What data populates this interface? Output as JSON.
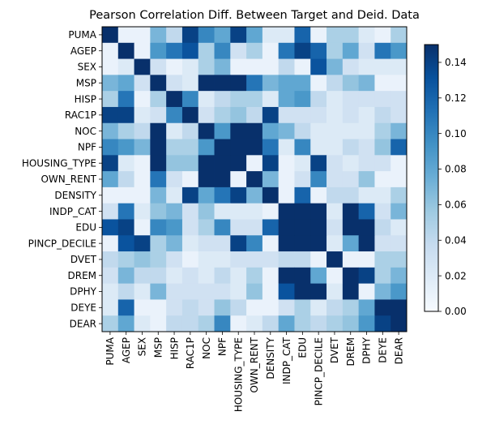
{
  "chart_data": {
    "type": "heatmap",
    "title": "Pearson Correlation Diff. Between Target and Deid. Data",
    "xlabel": "",
    "ylabel": "",
    "labels": [
      "PUMA",
      "AGEP",
      "SEX",
      "MSP",
      "HISP",
      "RAC1P",
      "NOC",
      "NPF",
      "HOUSING_TYPE",
      "OWN_RENT",
      "DENSITY",
      "INDP_CAT",
      "EDU",
      "PINCP_DECILE",
      "DVET",
      "DREM",
      "DPHY",
      "DEYE",
      "DEAR"
    ],
    "colorbar": {
      "min": 0.0,
      "max": 0.15,
      "ticks": [
        0.0,
        0.02,
        0.04,
        0.06,
        0.08,
        0.1,
        0.12,
        0.14
      ],
      "tick_labels": [
        "0.00",
        "0.02",
        "0.04",
        "0.06",
        "0.08",
        "0.10",
        "0.12",
        "0.14"
      ],
      "colors": [
        "#f7fbff",
        "#deebf7",
        "#c6dbef",
        "#9ecae1",
        "#6baed6",
        "#4292c6",
        "#2171b5",
        "#08519c",
        "#08306b"
      ]
    },
    "values": [
      [
        0.15,
        0.01,
        0.01,
        0.07,
        0.04,
        0.14,
        0.1,
        0.08,
        0.14,
        0.08,
        0.02,
        0.02,
        0.12,
        0.01,
        0.05,
        0.05,
        0.02,
        0.01,
        0.05
      ],
      [
        0.01,
        0.15,
        0.01,
        0.09,
        0.11,
        0.13,
        0.05,
        0.1,
        0.03,
        0.05,
        0.01,
        0.11,
        0.14,
        0.12,
        0.05,
        0.08,
        0.03,
        0.11,
        0.09
      ],
      [
        0.01,
        0.02,
        0.15,
        0.03,
        0.01,
        0.02,
        0.05,
        0.07,
        0.01,
        0.01,
        0.01,
        0.04,
        0.01,
        0.13,
        0.07,
        0.03,
        0.02,
        0.02,
        0.02
      ],
      [
        0.07,
        0.08,
        0.03,
        0.15,
        0.03,
        0.02,
        0.15,
        0.15,
        0.15,
        0.11,
        0.07,
        0.08,
        0.08,
        0.01,
        0.04,
        0.06,
        0.07,
        0.01,
        0.01
      ],
      [
        0.05,
        0.11,
        0.01,
        0.05,
        0.15,
        0.1,
        0.02,
        0.04,
        0.05,
        0.05,
        0.02,
        0.08,
        0.09,
        0.04,
        0.02,
        0.03,
        0.03,
        0.03,
        0.03
      ],
      [
        0.14,
        0.14,
        0.02,
        0.03,
        0.1,
        0.15,
        0.03,
        0.05,
        0.06,
        0.04,
        0.14,
        0.03,
        0.03,
        0.03,
        0.02,
        0.03,
        0.02,
        0.04,
        0.03
      ],
      [
        0.07,
        0.05,
        0.04,
        0.15,
        0.02,
        0.04,
        0.15,
        0.09,
        0.15,
        0.15,
        0.08,
        0.07,
        0.04,
        0.02,
        0.02,
        0.02,
        0.02,
        0.05,
        0.07
      ],
      [
        0.1,
        0.09,
        0.07,
        0.15,
        0.05,
        0.05,
        0.09,
        0.15,
        0.15,
        0.15,
        0.11,
        0.02,
        0.1,
        0.02,
        0.02,
        0.04,
        0.03,
        0.06,
        0.12
      ],
      [
        0.14,
        0.02,
        0.01,
        0.15,
        0.06,
        0.06,
        0.15,
        0.15,
        0.15,
        0.01,
        0.14,
        0.01,
        0.02,
        0.14,
        0.03,
        0.02,
        0.03,
        0.03,
        0.01
      ],
      [
        0.08,
        0.04,
        0.01,
        0.11,
        0.03,
        0.01,
        0.15,
        0.15,
        0.01,
        0.15,
        0.07,
        0.01,
        0.03,
        0.1,
        0.03,
        0.03,
        0.06,
        0.01,
        0.01
      ],
      [
        0.01,
        0.01,
        0.01,
        0.07,
        0.02,
        0.14,
        0.08,
        0.11,
        0.14,
        0.07,
        0.15,
        0.01,
        0.12,
        0.01,
        0.04,
        0.04,
        0.02,
        0.02,
        0.05
      ],
      [
        0.03,
        0.11,
        0.02,
        0.06,
        0.07,
        0.03,
        0.06,
        0.02,
        0.02,
        0.02,
        0.01,
        0.15,
        0.15,
        0.15,
        0.02,
        0.15,
        0.12,
        0.03,
        0.07
      ],
      [
        0.13,
        0.14,
        0.01,
        0.1,
        0.09,
        0.03,
        0.05,
        0.1,
        0.03,
        0.03,
        0.12,
        0.15,
        0.15,
        0.15,
        0.03,
        0.15,
        0.15,
        0.04,
        0.02
      ],
      [
        0.01,
        0.13,
        0.14,
        0.05,
        0.07,
        0.02,
        0.03,
        0.03,
        0.14,
        0.1,
        0.01,
        0.15,
        0.15,
        0.15,
        0.02,
        0.08,
        0.15,
        0.03,
        0.03
      ],
      [
        0.04,
        0.05,
        0.06,
        0.05,
        0.03,
        0.01,
        0.02,
        0.02,
        0.03,
        0.03,
        0.03,
        0.04,
        0.04,
        0.01,
        0.15,
        0.01,
        0.01,
        0.05,
        0.05
      ],
      [
        0.03,
        0.07,
        0.04,
        0.04,
        0.02,
        0.03,
        0.02,
        0.04,
        0.02,
        0.05,
        0.01,
        0.15,
        0.15,
        0.08,
        0.01,
        0.15,
        0.14,
        0.05,
        0.07
      ],
      [
        0.02,
        0.04,
        0.02,
        0.07,
        0.03,
        0.03,
        0.03,
        0.03,
        0.02,
        0.06,
        0.01,
        0.13,
        0.15,
        0.15,
        0.02,
        0.15,
        0.01,
        0.07,
        0.09
      ],
      [
        0.02,
        0.12,
        0.01,
        0.01,
        0.03,
        0.04,
        0.03,
        0.06,
        0.04,
        0.01,
        0.01,
        0.03,
        0.05,
        0.02,
        0.04,
        0.05,
        0.08,
        0.15,
        0.15
      ],
      [
        0.05,
        0.08,
        0.02,
        0.01,
        0.04,
        0.04,
        0.05,
        0.1,
        0.01,
        0.02,
        0.04,
        0.08,
        0.05,
        0.04,
        0.05,
        0.06,
        0.09,
        0.14,
        0.15
      ]
    ]
  }
}
